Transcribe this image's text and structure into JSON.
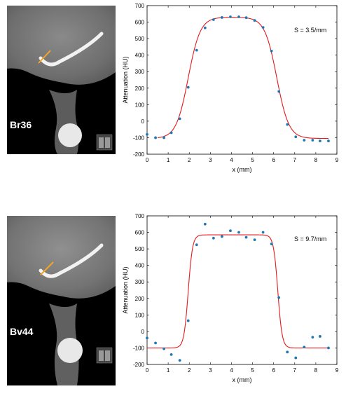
{
  "panels": [
    {
      "kernel_label": "Br36",
      "annotation": "S = 3.5/mm"
    },
    {
      "kernel_label": "Bv44",
      "annotation": "S = 9.7/mm"
    }
  ],
  "chart_data": [
    {
      "type": "scatter",
      "title": "",
      "xlabel": "x (mm)",
      "ylabel": "Attenuation (HU)",
      "xlim": [
        0,
        9
      ],
      "ylim": [
        -200,
        700
      ],
      "xticks": [
        0,
        1,
        2,
        3,
        4,
        5,
        6,
        7,
        8,
        9
      ],
      "yticks": [
        -200,
        -100,
        0,
        100,
        200,
        300,
        400,
        500,
        600,
        700
      ],
      "grid": false,
      "annotation": "S = 3.5/mm",
      "colors": {
        "points": "#1f77b4",
        "fit": "#e31a1c"
      },
      "series": [
        {
          "kind": "points",
          "x": [
            0.0,
            0.4,
            0.8,
            1.15,
            1.55,
            1.95,
            2.35,
            2.75,
            3.15,
            3.55,
            3.95,
            4.35,
            4.7,
            5.1,
            5.5,
            5.9,
            6.25,
            6.65,
            7.05,
            7.45,
            7.85,
            8.2,
            8.6
          ],
          "y": [
            -80,
            -100,
            -100,
            -70,
            15,
            205,
            430,
            565,
            615,
            628,
            632,
            632,
            627,
            610,
            568,
            425,
            180,
            -20,
            -95,
            -115,
            -115,
            -120,
            -120
          ]
        },
        {
          "kind": "fit",
          "baseline": -105,
          "plateau": 630,
          "left_edge": 1.95,
          "right_edge": 6.15,
          "sharpness": 3.5,
          "x_range": [
            0.5,
            8.6
          ]
        }
      ]
    },
    {
      "type": "scatter",
      "title": "",
      "xlabel": "x (mm)",
      "ylabel": "Attenuation (HU)",
      "xlim": [
        0,
        9
      ],
      "ylim": [
        -200,
        700
      ],
      "xticks": [
        0,
        1,
        2,
        3,
        4,
        5,
        6,
        7,
        8,
        9
      ],
      "yticks": [
        -200,
        -100,
        0,
        100,
        200,
        300,
        400,
        500,
        600,
        700
      ],
      "grid": false,
      "annotation": "S = 9.7/mm",
      "colors": {
        "points": "#1f77b4",
        "fit": "#e31a1c"
      },
      "series": [
        {
          "kind": "points",
          "x": [
            0.0,
            0.4,
            0.8,
            1.15,
            1.55,
            1.95,
            2.35,
            2.75,
            3.15,
            3.55,
            3.95,
            4.35,
            4.7,
            5.1,
            5.5,
            5.9,
            6.25,
            6.65,
            7.05,
            7.45,
            7.85,
            8.2,
            8.6
          ],
          "y": [
            -40,
            -70,
            -105,
            -140,
            -175,
            65,
            525,
            650,
            565,
            575,
            610,
            600,
            570,
            555,
            600,
            530,
            205,
            -125,
            -160,
            -95,
            -35,
            -30,
            -100
          ]
        },
        {
          "kind": "fit",
          "baseline": -100,
          "plateau": 585,
          "left_edge": 1.95,
          "right_edge": 6.2,
          "sharpness": 9.7,
          "x_range": [
            0.0,
            8.6
          ]
        }
      ]
    }
  ]
}
